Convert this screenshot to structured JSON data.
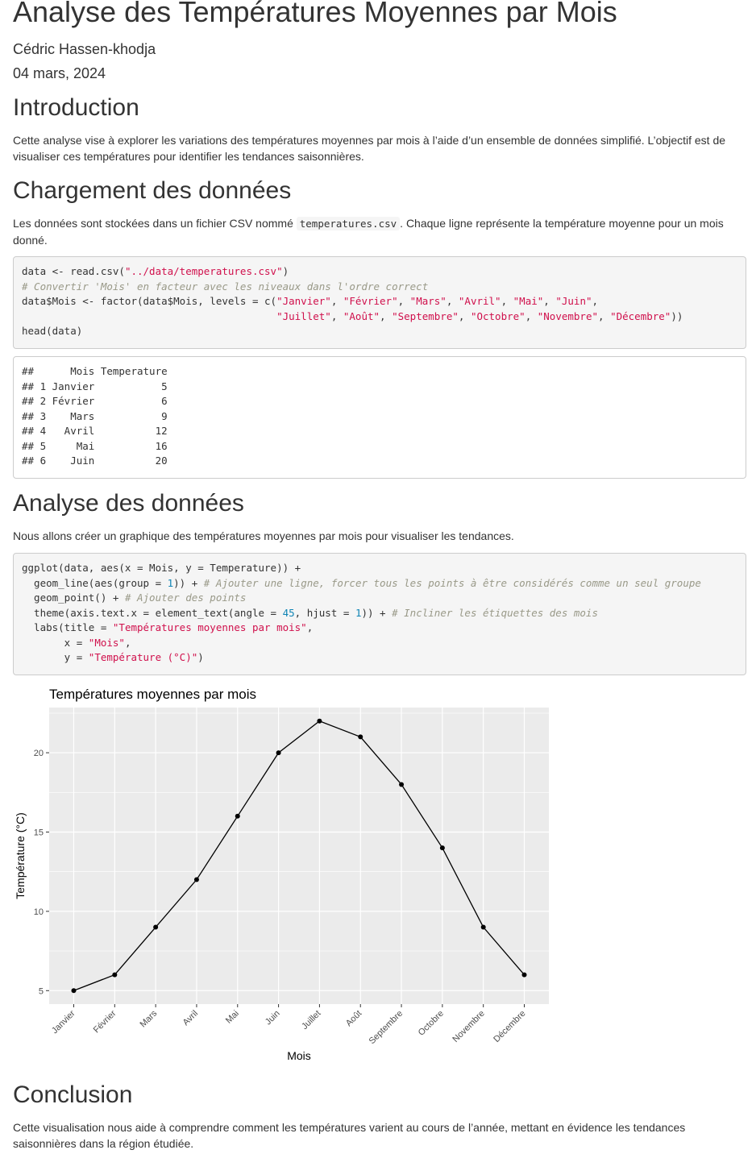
{
  "header": {
    "title": "Analyse des Températures Moyennes par Mois",
    "author": "Cédric Hassen-khodja",
    "date": "04 mars, 2024"
  },
  "intro": {
    "heading": "Introduction",
    "text": "Cette analyse vise à explorer les variations des températures moyennes par mois à l’aide d’un ensemble de données simplifié. L’objectif est de visualiser ces températures pour identifier les tendances saisonnières."
  },
  "loading": {
    "heading": "Chargement des données",
    "text_before": "Les données sont stockées dans un fichier CSV nommé ",
    "filename": "temperatures.csv",
    "text_after": ". Chaque ligne représente la température moyenne pour un mois donné.",
    "code": [
      [
        {
          "t": "data <- read.csv(",
          "c": "kw"
        },
        {
          "t": "\"../data/temperatures.csv\"",
          "c": "str"
        },
        {
          "t": ")",
          "c": "kw"
        }
      ],
      [
        {
          "t": "# Convertir 'Mois' en facteur avec les niveaux dans l'ordre correct",
          "c": "cmt"
        }
      ],
      [
        {
          "t": "data$Mois <- factor(data$Mois, levels = c(",
          "c": "kw"
        },
        {
          "t": "\"Janvier\"",
          "c": "str"
        },
        {
          "t": ", ",
          "c": "kw"
        },
        {
          "t": "\"Février\"",
          "c": "str"
        },
        {
          "t": ", ",
          "c": "kw"
        },
        {
          "t": "\"Mars\"",
          "c": "str"
        },
        {
          "t": ", ",
          "c": "kw"
        },
        {
          "t": "\"Avril\"",
          "c": "str"
        },
        {
          "t": ", ",
          "c": "kw"
        },
        {
          "t": "\"Mai\"",
          "c": "str"
        },
        {
          "t": ", ",
          "c": "kw"
        },
        {
          "t": "\"Juin\"",
          "c": "str"
        },
        {
          "t": ",",
          "c": "kw"
        }
      ],
      [
        {
          "t": "                                          ",
          "c": "kw"
        },
        {
          "t": "\"Juillet\"",
          "c": "str"
        },
        {
          "t": ", ",
          "c": "kw"
        },
        {
          "t": "\"Août\"",
          "c": "str"
        },
        {
          "t": ", ",
          "c": "kw"
        },
        {
          "t": "\"Septembre\"",
          "c": "str"
        },
        {
          "t": ", ",
          "c": "kw"
        },
        {
          "t": "\"Octobre\"",
          "c": "str"
        },
        {
          "t": ", ",
          "c": "kw"
        },
        {
          "t": "\"Novembre\"",
          "c": "str"
        },
        {
          "t": ", ",
          "c": "kw"
        },
        {
          "t": "\"Décembre\"",
          "c": "str"
        },
        {
          "t": "))",
          "c": "kw"
        }
      ],
      [
        {
          "t": "head(data)",
          "c": "kw"
        }
      ]
    ],
    "output": [
      "##      Mois Temperature",
      "## 1 Janvier           5",
      "## 2 Février           6",
      "## 3    Mars           9",
      "## 4   Avril          12",
      "## 5     Mai          16",
      "## 6    Juin          20"
    ]
  },
  "analysis": {
    "heading": "Analyse des données",
    "text": "Nous allons créer un graphique des températures moyennes par mois pour visualiser les tendances.",
    "code": [
      [
        {
          "t": "ggplot(data, aes(x = Mois, y = Temperature)) +",
          "c": "kw"
        }
      ],
      [
        {
          "t": "  geom_line(aes(group = ",
          "c": "kw"
        },
        {
          "t": "1",
          "c": "num"
        },
        {
          "t": ")) + ",
          "c": "kw"
        },
        {
          "t": "# Ajouter une ligne, forcer tous les points à être considérés comme un seul groupe",
          "c": "cmt"
        }
      ],
      [
        {
          "t": "  geom_point() + ",
          "c": "kw"
        },
        {
          "t": "# Ajouter des points",
          "c": "cmt"
        }
      ],
      [
        {
          "t": "  theme(axis.text.x = element_text(angle = ",
          "c": "kw"
        },
        {
          "t": "45",
          "c": "num"
        },
        {
          "t": ", hjust = ",
          "c": "kw"
        },
        {
          "t": "1",
          "c": "num"
        },
        {
          "t": ")) + ",
          "c": "kw"
        },
        {
          "t": "# Incliner les étiquettes des mois",
          "c": "cmt"
        }
      ],
      [
        {
          "t": "  labs(title = ",
          "c": "kw"
        },
        {
          "t": "\"Températures moyennes par mois\"",
          "c": "str"
        },
        {
          "t": ",",
          "c": "kw"
        }
      ],
      [
        {
          "t": "       x = ",
          "c": "kw"
        },
        {
          "t": "\"Mois\"",
          "c": "str"
        },
        {
          "t": ",",
          "c": "kw"
        }
      ],
      [
        {
          "t": "       y = ",
          "c": "kw"
        },
        {
          "t": "\"Température (°C)\"",
          "c": "str"
        },
        {
          "t": ")",
          "c": "kw"
        }
      ]
    ]
  },
  "chart_data": {
    "type": "line",
    "title": "Températures moyennes par mois",
    "xlabel": "Mois",
    "ylabel": "Température (°C)",
    "categories": [
      "Janvier",
      "Février",
      "Mars",
      "Avril",
      "Mai",
      "Juin",
      "Juillet",
      "Août",
      "Septembre",
      "Octobre",
      "Novembre",
      "Décembre"
    ],
    "values": [
      5,
      6,
      9,
      12,
      16,
      20,
      22,
      21,
      18,
      14,
      9,
      6
    ],
    "ylim": [
      4.15,
      22.85
    ],
    "yticks": [
      5,
      10,
      15,
      20
    ],
    "grid": true,
    "markers": true,
    "colors": {
      "panel": "#ebebeb",
      "grid": "#ffffff",
      "line": "#000000"
    }
  },
  "conclusion": {
    "heading": "Conclusion",
    "text": "Cette visualisation nous aide à comprendre comment les températures varient au cours de l’année, mettant en évidence les tendances saisonnières dans la région étudiée."
  }
}
